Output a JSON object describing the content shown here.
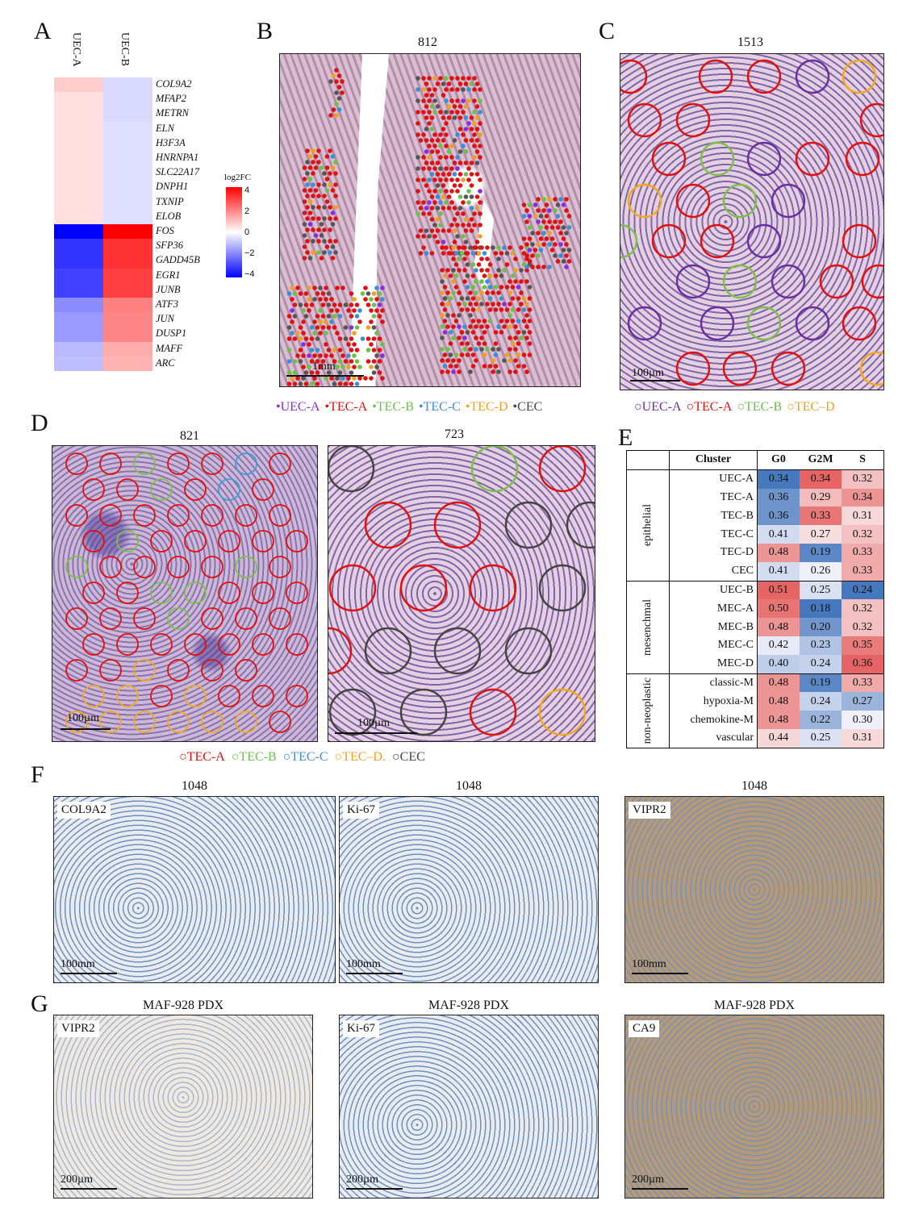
{
  "panel_letters": [
    "A",
    "B",
    "C",
    "D",
    "E",
    "F",
    "G"
  ],
  "heatmap": {
    "columns": [
      "UEC-A",
      "UEC-B"
    ],
    "genes": [
      "COL9A2",
      "MFAP2",
      "METRN",
      "ELN",
      "H3F3A",
      "HNRNPA1",
      "SLC22A17",
      "DNPH1",
      "TXNIP",
      "ELOB",
      "FOS",
      "SFP36",
      "GADD45B",
      "EGR1",
      "JUNB",
      "ATF3",
      "JUN",
      "DUSP1",
      "MAFF",
      "ARC"
    ],
    "legend_title": "log2FC",
    "legend_ticks": [
      "4",
      "2",
      "0",
      "−2",
      "−4"
    ]
  },
  "chart_data": {
    "type": "heatmap",
    "columns": [
      "UEC-A",
      "UEC-B"
    ],
    "rows": [
      "COL9A2",
      "MFAP2",
      "METRN",
      "ELN",
      "H3F3A",
      "HNRNPA1",
      "SLC22A17",
      "DNPH1",
      "TXNIP",
      "ELOB",
      "FOS",
      "SFP36",
      "GADD45B",
      "EGR1",
      "JUNB",
      "ATF3",
      "JUN",
      "DUSP1",
      "MAFF",
      "ARC"
    ],
    "values": [
      [
        0.8,
        -0.6
      ],
      [
        0.5,
        -0.6
      ],
      [
        0.5,
        -0.6
      ],
      [
        0.5,
        -0.5
      ],
      [
        0.5,
        -0.5
      ],
      [
        0.5,
        -0.5
      ],
      [
        0.5,
        -0.5
      ],
      [
        0.5,
        -0.5
      ],
      [
        0.5,
        -0.5
      ],
      [
        0.5,
        -0.5
      ],
      [
        -4,
        4
      ],
      [
        -3.2,
        3.2
      ],
      [
        -3.2,
        3.2
      ],
      [
        -3,
        3
      ],
      [
        -3,
        3
      ],
      [
        -1.8,
        2
      ],
      [
        -1.6,
        1.9
      ],
      [
        -1.6,
        1.9
      ],
      [
        -1.1,
        1.3
      ],
      [
        -1,
        1.2
      ]
    ],
    "color_range": [
      -4,
      4
    ]
  },
  "panelB": {
    "title": "812",
    "scale": "1mm"
  },
  "panelC": {
    "title": "1513",
    "scale": "100µm"
  },
  "legendB": [
    {
      "text": "•UEC-A",
      "color": "#8a2be2"
    },
    {
      "text": "•TEC-A",
      "color": "#e01010"
    },
    {
      "text": "•TEC-B",
      "color": "#6cc04a"
    },
    {
      "text": "•TEC-C",
      "color": "#3a8fd6"
    },
    {
      "text": "•TEC-D",
      "color": "#f0a020"
    },
    {
      "text": "•CEC",
      "color": "#444444"
    }
  ],
  "legendC": [
    {
      "text": "○UEC-A",
      "color": "#6a2fa0"
    },
    {
      "text": "○TEC-A",
      "color": "#e01010"
    },
    {
      "text": "○TEC-B",
      "color": "#6cc04a"
    },
    {
      "text": "○TEC–D",
      "color": "#f0a020"
    }
  ],
  "panelD": {
    "title_left": "821",
    "title_right": "723",
    "scale": "100µm"
  },
  "legendD": [
    {
      "text": "○TEC-A",
      "color": "#e01010"
    },
    {
      "text": "○TEC-B",
      "color": "#6cc04a"
    },
    {
      "text": "○TEC-C",
      "color": "#3a8fd6"
    },
    {
      "text": "○TEC–D.",
      "color": "#f0a020"
    },
    {
      "text": "○CEC",
      "color": "#444444"
    }
  ],
  "tableE": {
    "headers": [
      "Cluster",
      "G0",
      "G2M",
      "S"
    ],
    "groups": [
      {
        "name": "epithelial",
        "rows": [
          {
            "cluster": "UEC-A",
            "g0": "0.34",
            "g2m": "0.34",
            "s": "0.32"
          },
          {
            "cluster": "TEC-A",
            "g0": "0.36",
            "g2m": "0.29",
            "s": "0.34"
          },
          {
            "cluster": "TEC-B",
            "g0": "0.36",
            "g2m": "0.33",
            "s": "0.31"
          },
          {
            "cluster": "TEC-C",
            "g0": "0.41",
            "g2m": "0.27",
            "s": "0.32"
          },
          {
            "cluster": "TEC-D",
            "g0": "0.48",
            "g2m": "0.19",
            "s": "0.33"
          },
          {
            "cluster": "CEC",
            "g0": "0.41",
            "g2m": "0.26",
            "s": "0.33"
          }
        ]
      },
      {
        "name": "mesenchmal",
        "rows": [
          {
            "cluster": "UEC-B",
            "g0": "0.51",
            "g2m": "0.25",
            "s": "0.24"
          },
          {
            "cluster": "MEC-A",
            "g0": "0.50",
            "g2m": "0.18",
            "s": "0.32"
          },
          {
            "cluster": "MEC-B",
            "g0": "0.48",
            "g2m": "0.20",
            "s": "0.32"
          },
          {
            "cluster": "MEC-C",
            "g0": "0.42",
            "g2m": "0.23",
            "s": "0.35"
          },
          {
            "cluster": "MEC-D",
            "g0": "0.40",
            "g2m": "0.24",
            "s": "0.36"
          }
        ]
      },
      {
        "name": "non-neoplastic",
        "rows": [
          {
            "cluster": "classic-M",
            "g0": "0.48",
            "g2m": "0.19",
            "s": "0.33"
          },
          {
            "cluster": "hypoxia-M",
            "g0": "0.48",
            "g2m": "0.24",
            "s": "0.27"
          },
          {
            "cluster": "chemokine-M",
            "g0": "0.48",
            "g2m": "0.22",
            "s": "0.30"
          },
          {
            "cluster": "vascular",
            "g0": "0.44",
            "g2m": "0.25",
            "s": "0.31"
          }
        ]
      }
    ]
  },
  "panelF": [
    {
      "title": "1048",
      "label": "COL9A2",
      "scale": "100mm"
    },
    {
      "title": "1048",
      "label": "Ki-67",
      "scale": "100mm"
    },
    {
      "title": "1048",
      "label": "VIPR2",
      "scale": "100mm"
    }
  ],
  "panelG": [
    {
      "title": "MAF-928 PDX",
      "label": "VIPR2",
      "scale": "200µm"
    },
    {
      "title": "MAF-928 PDX",
      "label": "Ki-67",
      "scale": "200µm"
    },
    {
      "title": "MAF-928 PDX",
      "label": "CA9",
      "scale": "200µm"
    }
  ]
}
